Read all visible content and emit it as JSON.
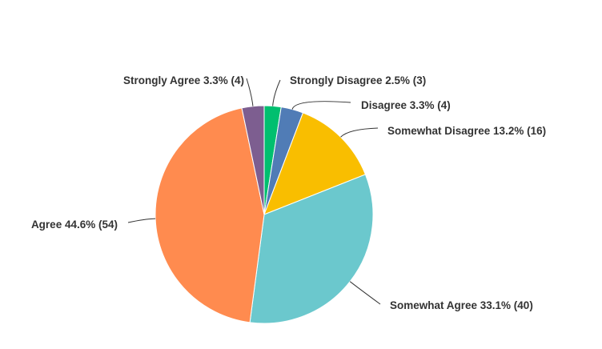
{
  "chart_data": {
    "type": "pie",
    "title": "",
    "start": "top",
    "direction": "clockwise",
    "slices": [
      {
        "label": "Strongly Disagree",
        "percent": 2.5,
        "count": 3,
        "text": "Strongly Disagree 2.5% (3)",
        "color": "#00BF6F"
      },
      {
        "label": "Disagree",
        "percent": 3.3,
        "count": 4,
        "text": "Disagree 3.3% (4)",
        "color": "#507CB6"
      },
      {
        "label": "Somewhat Disagree",
        "percent": 13.2,
        "count": 16,
        "text": "Somewhat Disagree 13.2% (16)",
        "color": "#F9BE00"
      },
      {
        "label": "Somewhat Agree",
        "percent": 33.1,
        "count": 40,
        "text": "Somewhat Agree 33.1% (40)",
        "color": "#6BC8CD"
      },
      {
        "label": "Agree",
        "percent": 44.6,
        "count": 54,
        "text": "Agree 44.6% (54)",
        "color": "#FF8B4F"
      },
      {
        "label": "Strongly Agree",
        "percent": 3.3,
        "count": 4,
        "text": "Strongly Agree 3.3% (4)",
        "color": "#7D5E90"
      }
    ]
  }
}
